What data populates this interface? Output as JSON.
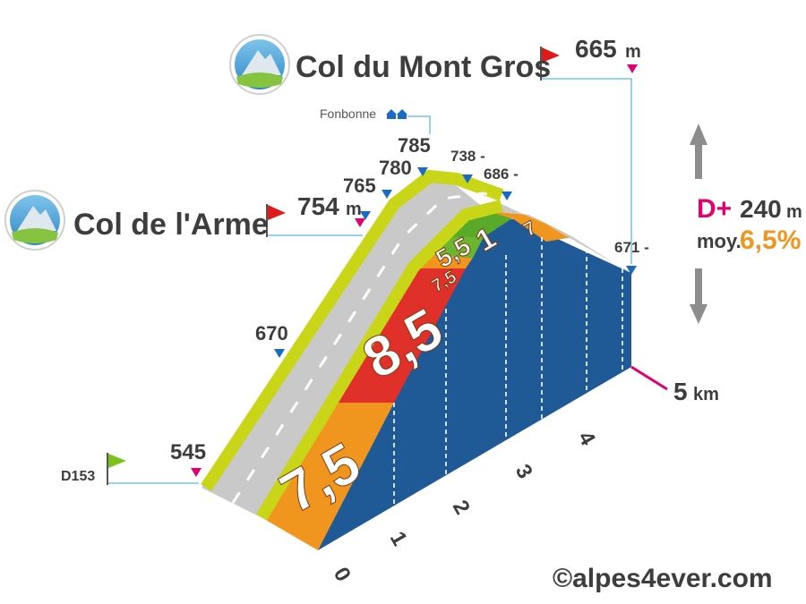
{
  "chart_data": {
    "type": "area",
    "title": "Col du Mont Gros",
    "summit_altitude": "665",
    "altitude_unit": "m",
    "secondary_col": {
      "name": "Col de l'Arme",
      "altitude": "754",
      "unit": "m"
    },
    "start": {
      "road": "D153",
      "altitude": "545"
    },
    "place": {
      "name": "Fonbonne"
    },
    "altitude_markers": [
      {
        "km": 0.0,
        "label": "545"
      },
      {
        "km": 1.5,
        "label": "670"
      },
      {
        "km": 2.3,
        "label": "754"
      },
      {
        "km": 2.4,
        "label": "765"
      },
      {
        "km": 2.6,
        "label": "780"
      },
      {
        "km": 2.8,
        "label": "785"
      },
      {
        "km": 3.3,
        "label": "738 -"
      },
      {
        "km": 3.7,
        "label": "686 -"
      },
      {
        "km": 5.0,
        "label": "671 -"
      }
    ],
    "gradient_segments": [
      {
        "label": "7,5",
        "from_km": 0,
        "to_km": 1,
        "color": "#f0961e"
      },
      {
        "label": "8,5",
        "from_km": 1,
        "to_km": 2,
        "color": "#e0302a"
      },
      {
        "label": "7,5",
        "from_km": 2,
        "to_km": 2.4,
        "color": "#f0961e"
      },
      {
        "label": "5,5",
        "from_km": 2.4,
        "to_km": 2.6,
        "color": "#6cb52e"
      },
      {
        "label": "1",
        "from_km": 2.6,
        "to_km": 3.2,
        "color": "#5aaa2a"
      },
      {
        "label": "7",
        "from_km": 3.2,
        "to_km": 3.6,
        "color": "#f0961e"
      }
    ],
    "km_ticks": [
      "0",
      "1",
      "2",
      "3",
      "4"
    ],
    "distance": {
      "value": "5",
      "unit": "km"
    },
    "elevation_gain": {
      "prefix": "D+",
      "value": "240",
      "unit": "m"
    },
    "average": {
      "label": "moy.",
      "value": "6,5%"
    },
    "copyright": "©alpes4ever.com",
    "colors": {
      "side": "#1f5a96",
      "road": "#c9c9c9",
      "shoulder": "#c8d617",
      "accent": "#e0006e",
      "marker": "#1a6cc0",
      "flag_red": "#e01a1a",
      "flag_green": "#7cc21c"
    }
  }
}
